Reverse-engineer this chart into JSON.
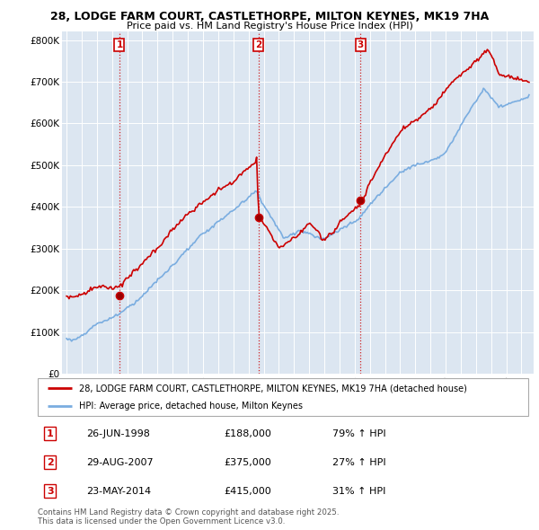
{
  "title_line1": "28, LODGE FARM COURT, CASTLETHORPE, MILTON KEYNES, MK19 7HA",
  "title_line2": "Price paid vs. HM Land Registry's House Price Index (HPI)",
  "background_color": "#ffffff",
  "plot_bg_color": "#dce6f1",
  "grid_color": "#ffffff",
  "red_color": "#cc0000",
  "blue_color": "#7aade0",
  "ylim": [
    0,
    820000
  ],
  "yticks": [
    0,
    100000,
    200000,
    300000,
    400000,
    500000,
    600000,
    700000,
    800000
  ],
  "ytick_labels": [
    "£0",
    "£100K",
    "£200K",
    "£300K",
    "£400K",
    "£500K",
    "£600K",
    "£700K",
    "£800K"
  ],
  "sales": [
    {
      "date_num": 1998.49,
      "price": 188000,
      "label": "1"
    },
    {
      "date_num": 2007.66,
      "price": 375000,
      "label": "2"
    },
    {
      "date_num": 2014.39,
      "price": 415000,
      "label": "3"
    }
  ],
  "legend_entries": [
    "28, LODGE FARM COURT, CASTLETHORPE, MILTON KEYNES, MK19 7HA (detached house)",
    "HPI: Average price, detached house, Milton Keynes"
  ],
  "table_rows": [
    {
      "num": "1",
      "date": "26-JUN-1998",
      "price": "£188,000",
      "hpi": "79% ↑ HPI"
    },
    {
      "num": "2",
      "date": "29-AUG-2007",
      "price": "£375,000",
      "hpi": "27% ↑ HPI"
    },
    {
      "num": "3",
      "date": "23-MAY-2014",
      "price": "£415,000",
      "hpi": "31% ↑ HPI"
    }
  ],
  "footer": "Contains HM Land Registry data © Crown copyright and database right 2025.\nThis data is licensed under the Open Government Licence v3.0."
}
